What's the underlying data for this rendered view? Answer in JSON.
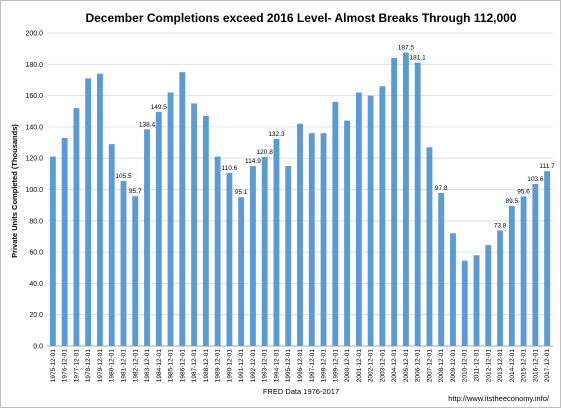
{
  "chart_data": {
    "type": "bar",
    "title": "December Completions exceed 2016 Level- Almost Breaks Through 112,000",
    "ylabel": "Private Units Completed (Thousands)",
    "xlabel": "FRED Data 1976-2017",
    "source_note": "http://www.itstheeconomy.info/",
    "ylim": [
      0,
      200
    ],
    "ytick_values": [
      0,
      20,
      40,
      60,
      80,
      100,
      120,
      140,
      160,
      180,
      200
    ],
    "ytick_labels": [
      "0.0",
      "20.0",
      "40.0",
      "60.0",
      "80.0",
      "100.0",
      "120.0",
      "140.0",
      "160.0",
      "180.0",
      "200.0"
    ],
    "grid": true,
    "bar_color": "#5b9bd5",
    "grid_color": "#d9d9d9",
    "categories": [
      "1975-12-01",
      "1976-12-01",
      "1977-12-01",
      "1978-12-01",
      "1979-12-01",
      "1980-12-01",
      "1981-12-01",
      "1982-12-01",
      "1983-12-01",
      "1984-12-01",
      "1985-12-01",
      "1986-12-01",
      "1987-12-01",
      "1988-12-01",
      "1989-12-01",
      "1990-12-01",
      "1991-12-01",
      "1992-12-01",
      "1993-12-01",
      "1994-12-01",
      "1995-12-01",
      "1996-12-01",
      "1997-12-01",
      "1998-12-01",
      "1999-12-01",
      "2000-12-01",
      "2001-12-01",
      "2002-12-01",
      "2003-12-01",
      "2004-12-01",
      "2005-12-01",
      "2006-12-01",
      "2007-12-01",
      "2008-12-01",
      "2009-12-01",
      "2010-12-01",
      "2011-12-01",
      "2012-12-01",
      "2013-12-01",
      "2014-12-01",
      "2015-12-01",
      "2016-12-01",
      "2017-12-01"
    ],
    "values": [
      121,
      133,
      152,
      171,
      174,
      129,
      105.5,
      95.7,
      138.4,
      149.5,
      162,
      175,
      155,
      147,
      121,
      110.6,
      95.1,
      114.9,
      120.8,
      132.3,
      115,
      142,
      136,
      136,
      156,
      144,
      162,
      160,
      166,
      184,
      187.5,
      181.1,
      127,
      97.8,
      72,
      54.5,
      58,
      64.5,
      73.8,
      89.5,
      95.6,
      103.6,
      111.7
    ],
    "data_labels": [
      null,
      null,
      null,
      null,
      null,
      null,
      "105.5",
      "95.7",
      "138.4",
      "149.5",
      null,
      null,
      null,
      null,
      null,
      "110.6",
      "95.1",
      "114.9",
      "120.8",
      "132.3",
      null,
      null,
      null,
      null,
      null,
      null,
      null,
      null,
      null,
      null,
      "187.5",
      "181.1",
      null,
      "97.8",
      null,
      null,
      null,
      null,
      "73.8",
      "89.5",
      "95.6",
      "103.6",
      "111.7"
    ]
  }
}
